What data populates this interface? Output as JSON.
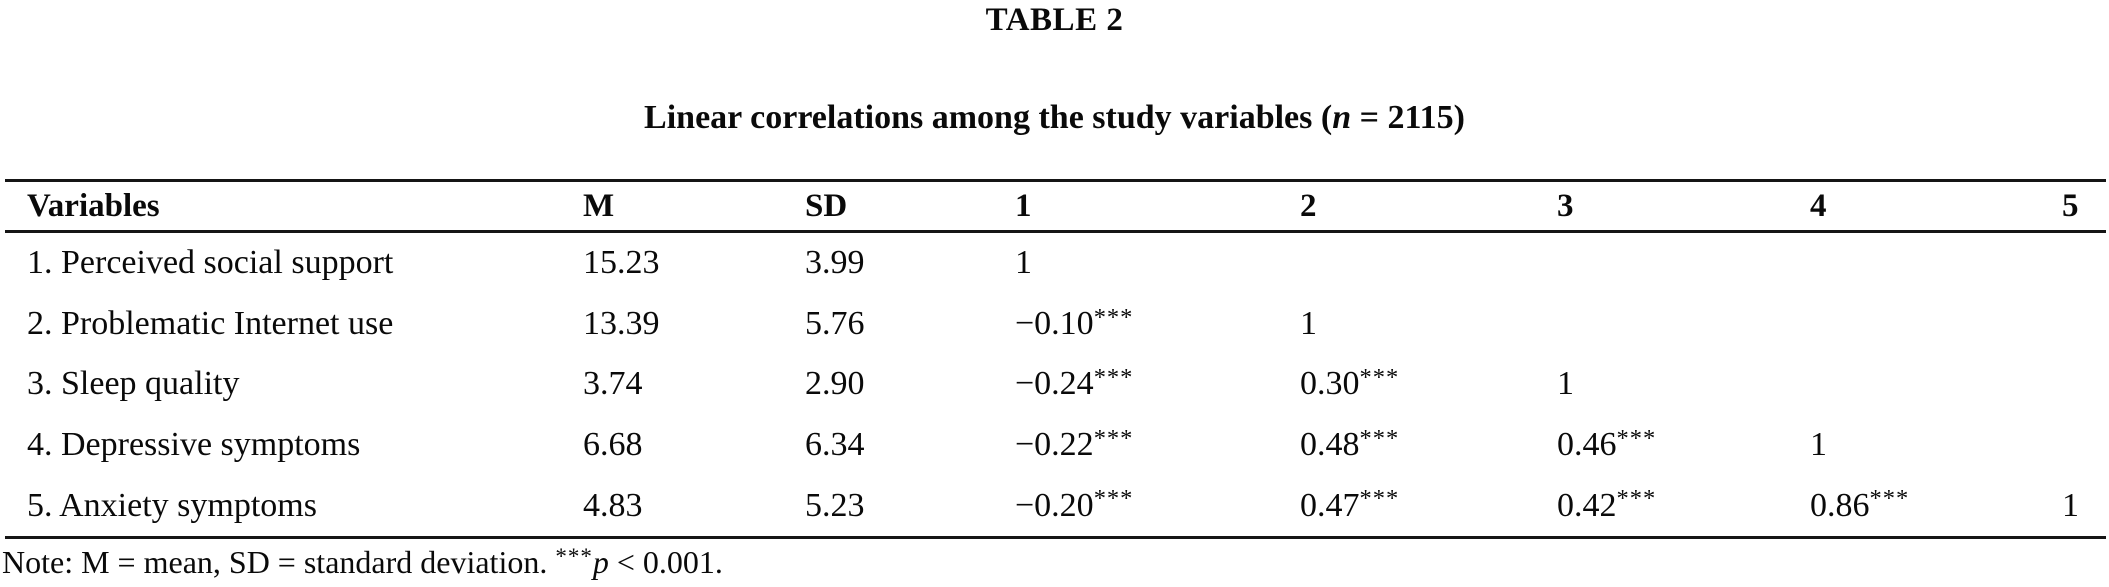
{
  "page": {
    "table_label": "TABLE 2"
  },
  "subtitle": {
    "prefix": "Linear correlations among the study variables (",
    "n_symbol": "n",
    "suffix": " = 2115)"
  },
  "table": {
    "columns": [
      "Variables",
      "M",
      "SD",
      "1",
      "2",
      "3",
      "4",
      "5"
    ],
    "rows": [
      {
        "label": "1. Perceived social support",
        "m": "15.23",
        "sd": "3.99",
        "c1": {
          "v": "1",
          "s": ""
        },
        "c2": {
          "v": "",
          "s": ""
        },
        "c3": {
          "v": "",
          "s": ""
        },
        "c4": {
          "v": "",
          "s": ""
        },
        "c5": {
          "v": "",
          "s": ""
        }
      },
      {
        "label": "2. Problematic Internet use",
        "m": "13.39",
        "sd": "5.76",
        "c1": {
          "v": "−0.10",
          "s": "***"
        },
        "c2": {
          "v": "1",
          "s": ""
        },
        "c3": {
          "v": "",
          "s": ""
        },
        "c4": {
          "v": "",
          "s": ""
        },
        "c5": {
          "v": "",
          "s": ""
        }
      },
      {
        "label": "3. Sleep quality",
        "m": "3.74",
        "sd": "2.90",
        "c1": {
          "v": "−0.24",
          "s": "***"
        },
        "c2": {
          "v": "0.30",
          "s": "***"
        },
        "c3": {
          "v": "1",
          "s": ""
        },
        "c4": {
          "v": "",
          "s": ""
        },
        "c5": {
          "v": "",
          "s": ""
        }
      },
      {
        "label": "4. Depressive symptoms",
        "m": "6.68",
        "sd": "6.34",
        "c1": {
          "v": "−0.22",
          "s": "***"
        },
        "c2": {
          "v": "0.48",
          "s": "***"
        },
        "c3": {
          "v": "0.46",
          "s": "***"
        },
        "c4": {
          "v": "1",
          "s": ""
        },
        "c5": {
          "v": "",
          "s": ""
        }
      },
      {
        "label": "5. Anxiety symptoms",
        "m": "4.83",
        "sd": "5.23",
        "c1": {
          "v": "−0.20",
          "s": "***"
        },
        "c2": {
          "v": "0.47",
          "s": "***"
        },
        "c3": {
          "v": "0.42",
          "s": "***"
        },
        "c4": {
          "v": "0.86",
          "s": "***"
        },
        "c5": {
          "v": "1",
          "s": ""
        }
      }
    ]
  },
  "note": {
    "prefix": "Note: M = mean, SD = standard deviation. ",
    "stars": "***",
    "p_symbol": "p",
    "suffix": " < 0.001."
  }
}
